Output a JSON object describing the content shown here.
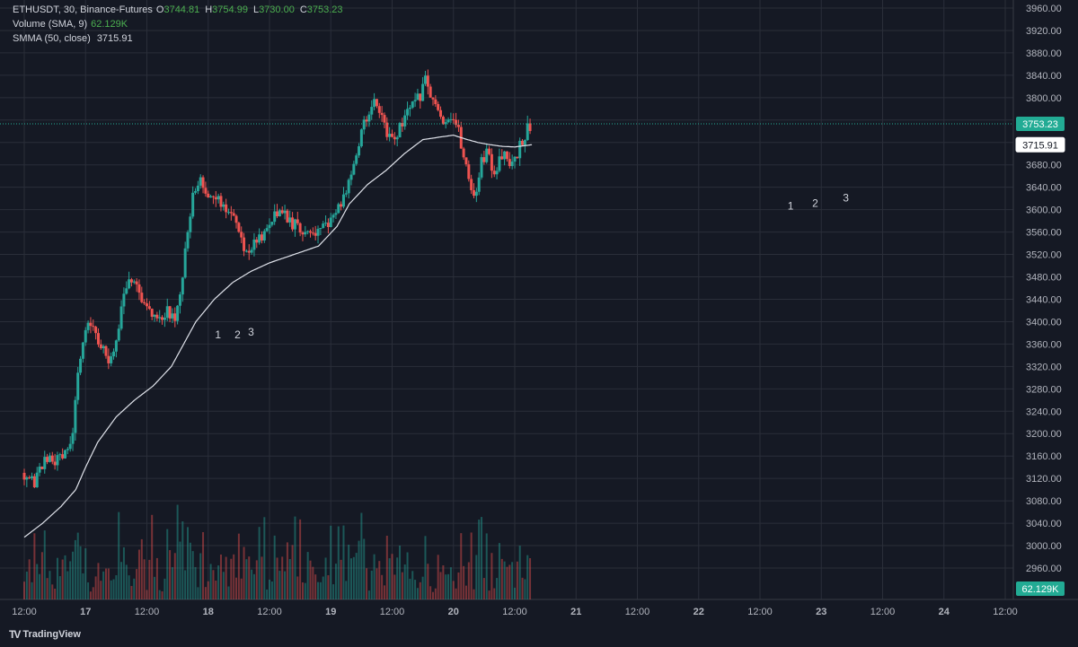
{
  "legend": {
    "symbol": "ETHUSDT, 30, Binance-Futures",
    "o_label": "O",
    "o_value": "3744.81",
    "h_label": "H",
    "h_value": "3754.99",
    "l_label": "L",
    "l_value": "3730.00",
    "c_label": "C",
    "c_value": "3753.23",
    "volume_label": "Volume (SMA, 9)",
    "volume_value": "62.129K",
    "smma_label": "SMMA (50, close)",
    "smma_value": "3715.91"
  },
  "brand": {
    "logo": "TV",
    "name": "TradingView"
  },
  "colors": {
    "up": "#26a69a",
    "down": "#ef5350",
    "grid": "#2a2e39",
    "smma": "#e0e3eb",
    "last_price": "#22ab94",
    "background": "#151924"
  },
  "chart_data": {
    "type": "candlestick",
    "symbol": "ETHUSDT",
    "interval": "30",
    "ylim": [
      2960,
      3960
    ],
    "yticks": [
      2960,
      3000,
      3040,
      3080,
      3120,
      3160,
      3200,
      3240,
      3280,
      3320,
      3360,
      3400,
      3440,
      3480,
      3520,
      3560,
      3600,
      3640,
      3680,
      3720,
      3760,
      3800,
      3840,
      3880,
      3920,
      3960
    ],
    "xlim": [
      -0.03,
      8.2
    ],
    "xticks": [
      {
        "t": 0.0,
        "label": "12:00"
      },
      {
        "t": 0.5,
        "label": "17"
      },
      {
        "t": 1.0,
        "label": "12:00"
      },
      {
        "t": 1.5,
        "label": "18"
      },
      {
        "t": 2.0,
        "label": "12:00"
      },
      {
        "t": 2.5,
        "label": "19"
      },
      {
        "t": 3.0,
        "label": "12:00"
      },
      {
        "t": 3.5,
        "label": "20"
      },
      {
        "t": 4.0,
        "label": "12:00"
      },
      {
        "t": 4.5,
        "label": "21"
      },
      {
        "t": 5.0,
        "label": "12:00"
      },
      {
        "t": 5.5,
        "label": "22"
      },
      {
        "t": 6.0,
        "label": "12:00"
      },
      {
        "t": 6.5,
        "label": "23"
      },
      {
        "t": 7.0,
        "label": "12:00"
      },
      {
        "t": 7.5,
        "label": "24"
      },
      {
        "t": 8.0,
        "label": "12:00"
      }
    ],
    "close_path": [
      [
        0.0,
        3130
      ],
      [
        0.08,
        3110
      ],
      [
        0.15,
        3145
      ],
      [
        0.22,
        3160
      ],
      [
        0.28,
        3148
      ],
      [
        0.34,
        3165
      ],
      [
        0.4,
        3210
      ],
      [
        0.45,
        3330
      ],
      [
        0.52,
        3400
      ],
      [
        0.57,
        3390
      ],
      [
        0.62,
        3360
      ],
      [
        0.67,
        3330
      ],
      [
        0.72,
        3340
      ],
      [
        0.77,
        3390
      ],
      [
        0.82,
        3450
      ],
      [
        0.87,
        3470
      ],
      [
        0.92,
        3460
      ],
      [
        0.97,
        3440
      ],
      [
        1.02,
        3420
      ],
      [
        1.07,
        3410
      ],
      [
        1.12,
        3395
      ],
      [
        1.17,
        3420
      ],
      [
        1.23,
        3410
      ],
      [
        1.28,
        3460
      ],
      [
        1.33,
        3560
      ],
      [
        1.38,
        3630
      ],
      [
        1.43,
        3660
      ],
      [
        1.48,
        3640
      ],
      [
        1.53,
        3615
      ],
      [
        1.58,
        3620
      ],
      [
        1.64,
        3600
      ],
      [
        1.69,
        3595
      ],
      [
        1.74,
        3570
      ],
      [
        1.8,
        3520
      ],
      [
        1.85,
        3530
      ],
      [
        1.9,
        3550
      ],
      [
        1.96,
        3560
      ],
      [
        2.02,
        3590
      ],
      [
        2.07,
        3600
      ],
      [
        2.12,
        3590
      ],
      [
        2.17,
        3575
      ],
      [
        2.22,
        3570
      ],
      [
        2.27,
        3565
      ],
      [
        2.33,
        3560
      ],
      [
        2.38,
        3555
      ],
      [
        2.43,
        3565
      ],
      [
        2.48,
        3575
      ],
      [
        2.54,
        3590
      ],
      [
        2.59,
        3610
      ],
      [
        2.64,
        3650
      ],
      [
        2.7,
        3700
      ],
      [
        2.75,
        3740
      ],
      [
        2.8,
        3770
      ],
      [
        2.85,
        3790
      ],
      [
        2.91,
        3760
      ],
      [
        2.96,
        3740
      ],
      [
        3.01,
        3720
      ],
      [
        3.06,
        3750
      ],
      [
        3.11,
        3770
      ],
      [
        3.16,
        3780
      ],
      [
        3.22,
        3800
      ],
      [
        3.27,
        3830
      ],
      [
        3.32,
        3800
      ],
      [
        3.38,
        3770
      ],
      [
        3.43,
        3760
      ],
      [
        3.48,
        3770
      ],
      [
        3.53,
        3750
      ],
      [
        3.58,
        3700
      ],
      [
        3.63,
        3650
      ],
      [
        3.68,
        3625
      ],
      [
        3.73,
        3690
      ],
      [
        3.78,
        3700
      ],
      [
        3.83,
        3660
      ],
      [
        3.88,
        3700
      ],
      [
        3.94,
        3690
      ],
      [
        3.99,
        3680
      ],
      [
        4.04,
        3710
      ],
      [
        4.09,
        3740
      ],
      [
        4.14,
        3753
      ]
    ],
    "smma": [
      [
        0.0,
        3015
      ],
      [
        0.15,
        3040
      ],
      [
        0.3,
        3070
      ],
      [
        0.42,
        3100
      ],
      [
        0.5,
        3140
      ],
      [
        0.6,
        3185
      ],
      [
        0.75,
        3230
      ],
      [
        0.9,
        3260
      ],
      [
        1.05,
        3285
      ],
      [
        1.2,
        3320
      ],
      [
        1.3,
        3360
      ],
      [
        1.4,
        3400
      ],
      [
        1.55,
        3440
      ],
      [
        1.7,
        3470
      ],
      [
        1.85,
        3490
      ],
      [
        2.0,
        3505
      ],
      [
        2.2,
        3520
      ],
      [
        2.4,
        3535
      ],
      [
        2.55,
        3570
      ],
      [
        2.65,
        3610
      ],
      [
        2.8,
        3645
      ],
      [
        2.95,
        3670
      ],
      [
        3.1,
        3700
      ],
      [
        3.25,
        3725
      ],
      [
        3.4,
        3730
      ],
      [
        3.5,
        3733
      ],
      [
        3.6,
        3726
      ],
      [
        3.7,
        3720
      ],
      [
        3.8,
        3716
      ],
      [
        3.9,
        3713
      ],
      [
        4.0,
        3712
      ],
      [
        4.14,
        3716
      ]
    ],
    "annotations": [
      {
        "label": "1",
        "t": 1.58,
        "price": 3370
      },
      {
        "label": "2",
        "t": 1.74,
        "price": 3370
      },
      {
        "label": "3",
        "t": 1.85,
        "price": 3375
      },
      {
        "label": "1",
        "t": 6.25,
        "price": 3600
      },
      {
        "label": "2",
        "t": 6.45,
        "price": 3605
      },
      {
        "label": "3",
        "t": 6.7,
        "price": 3615
      }
    ],
    "last_price": {
      "value": 3753.23,
      "label": "3753.23"
    },
    "smma_value": {
      "value": 3715.91,
      "label": "3715.91"
    },
    "volume_badge": "62.129K"
  }
}
